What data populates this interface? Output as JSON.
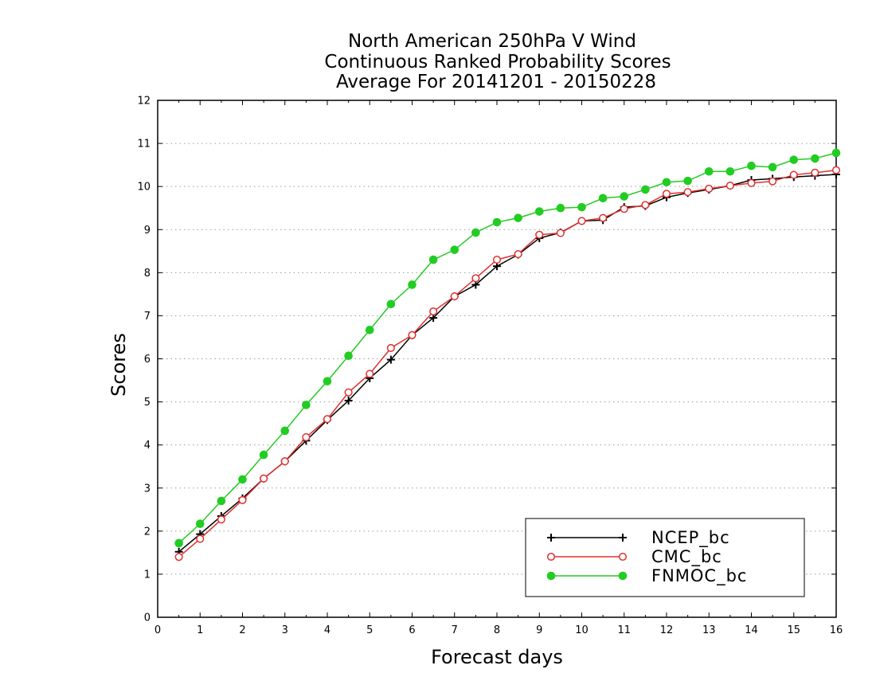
{
  "chart_data": {
    "type": "line",
    "title_lines": [
      "North American 250hPa V Wind",
      "Continuous Ranked Probability Scores",
      "Average For 20141201 - 20150228"
    ],
    "xlabel": "Forecast days",
    "ylabel": "Scores",
    "xlim": [
      0,
      16
    ],
    "ylim": [
      0,
      12
    ],
    "xticks": [
      "0",
      "1",
      "2",
      "3",
      "4",
      "5",
      "6",
      "7",
      "8",
      "9",
      "10",
      "11",
      "12",
      "13",
      "14",
      "15",
      "16"
    ],
    "yticks": [
      "0",
      "1",
      "2",
      "3",
      "4",
      "5",
      "6",
      "7",
      "8",
      "9",
      "10",
      "11",
      "12"
    ],
    "grid": "horizontal-dotted",
    "legend_position": "bottom-right",
    "x": [
      0.5,
      1,
      1.5,
      2,
      2.5,
      3,
      3.5,
      4,
      4.5,
      5,
      5.5,
      6,
      6.5,
      7,
      7.5,
      8,
      8.5,
      9,
      9.5,
      10,
      10.5,
      11,
      11.5,
      12,
      12.5,
      13,
      13.5,
      14,
      14.5,
      15,
      15.5,
      16
    ],
    "series": [
      {
        "name": "NCEP_bc",
        "color": "#000000",
        "marker": "plus",
        "values": [
          1.52,
          1.93,
          2.35,
          2.76,
          3.22,
          3.62,
          4.1,
          4.58,
          5.03,
          5.55,
          5.98,
          6.55,
          6.95,
          7.45,
          7.72,
          8.15,
          8.42,
          8.8,
          8.93,
          9.2,
          9.22,
          9.52,
          9.55,
          9.75,
          9.85,
          9.93,
          10.02,
          10.15,
          10.18,
          10.22,
          10.25,
          10.28
        ]
      },
      {
        "name": "CMC_bc",
        "color": "#e03030",
        "marker": "open-circle",
        "values": [
          1.4,
          1.82,
          2.27,
          2.72,
          3.22,
          3.62,
          4.18,
          4.6,
          5.22,
          5.65,
          6.25,
          6.55,
          7.1,
          7.45,
          7.87,
          8.3,
          8.43,
          8.88,
          8.92,
          9.2,
          9.27,
          9.48,
          9.57,
          9.83,
          9.87,
          9.95,
          10.02,
          10.08,
          10.12,
          10.27,
          10.32,
          10.38
        ]
      },
      {
        "name": "FNMOC_bc",
        "color": "#22cc22",
        "marker": "filled-circle",
        "values": [
          1.72,
          2.17,
          2.7,
          3.2,
          3.77,
          4.33,
          4.93,
          5.48,
          6.07,
          6.67,
          7.27,
          7.72,
          8.3,
          8.53,
          8.93,
          9.17,
          9.27,
          9.42,
          9.5,
          9.52,
          9.73,
          9.77,
          9.93,
          10.1,
          10.13,
          10.35,
          10.35,
          10.48,
          10.45,
          10.62,
          10.65,
          10.78
        ]
      }
    ]
  }
}
